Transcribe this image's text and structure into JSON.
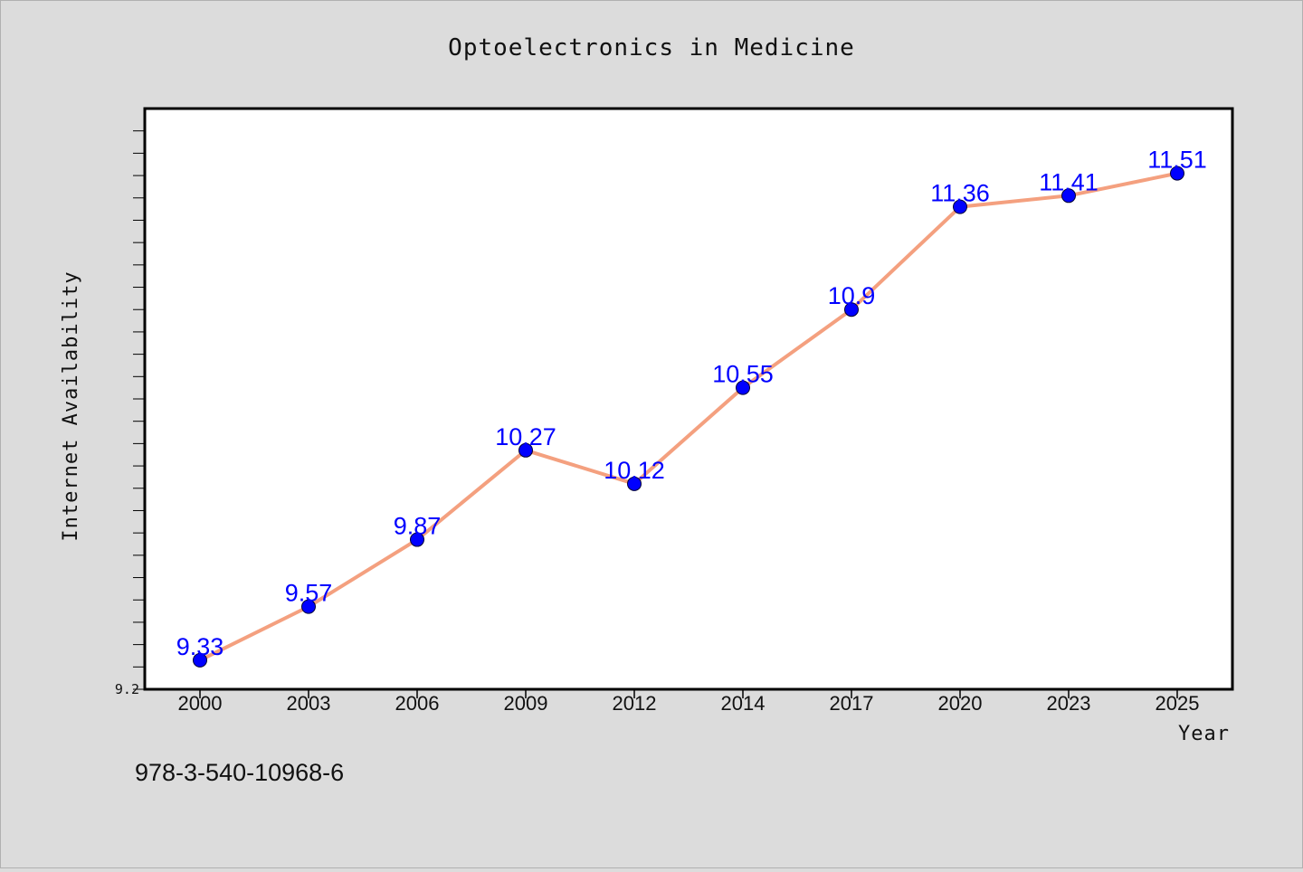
{
  "chart_data": {
    "type": "line",
    "title": "Optoelectronics in Medicine",
    "xlabel": "Year",
    "ylabel": "Internet Availability",
    "categories": [
      "2000",
      "2003",
      "2006",
      "2009",
      "2012",
      "2014",
      "2017",
      "2020",
      "2023",
      "2025"
    ],
    "series": [
      {
        "values": [
          9.33,
          9.57,
          9.87,
          10.27,
          10.12,
          10.55,
          10.9,
          11.36,
          11.41,
          11.51
        ]
      }
    ],
    "data_labels": [
      "9.33",
      "9.57",
      "9.87",
      "10.27",
      "10.12",
      "10.55",
      "10.9",
      "11.36",
      "11.41",
      "11.51"
    ],
    "ylim": [
      9.2,
      11.8
    ],
    "y_tick_labels": [
      "9.2"
    ],
    "grid": false,
    "line_color": "#f4a07f",
    "marker_color": "#0000ff",
    "label_color": "#0000ff",
    "footnote": "978-3-540-10968-6"
  }
}
